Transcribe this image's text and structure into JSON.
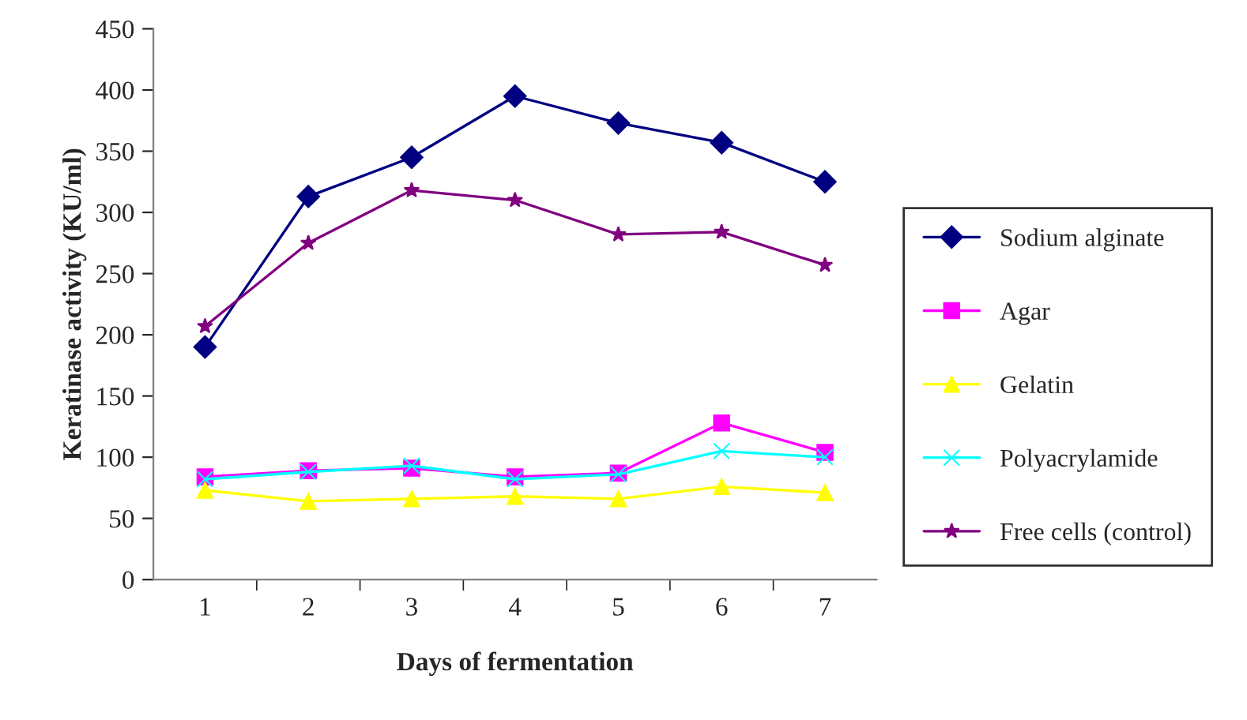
{
  "chart_data": {
    "type": "line",
    "xlabel": "Days of fermentation",
    "ylabel": "Keratinase activity (KU/ml)",
    "categories": [
      "1",
      "2",
      "3",
      "4",
      "5",
      "6",
      "7"
    ],
    "ylim": [
      0,
      450
    ],
    "yticks": [
      0,
      50,
      100,
      150,
      200,
      250,
      300,
      350,
      400,
      450
    ],
    "grid": false,
    "legend": "right",
    "series": [
      {
        "name": "Sodium alginate",
        "color": "#000080",
        "marker": "diamond",
        "values": [
          190,
          313,
          345,
          395,
          373,
          357,
          325
        ]
      },
      {
        "name": "Agar",
        "color": "#ff00ff",
        "marker": "square",
        "values": [
          84,
          89,
          91,
          84,
          87,
          128,
          104
        ]
      },
      {
        "name": "Gelatin",
        "color": "#ffff00",
        "marker": "triangle",
        "values": [
          73,
          64,
          66,
          68,
          66,
          76,
          71
        ]
      },
      {
        "name": "Polyacrylamide",
        "color": "#00ffff",
        "marker": "cross",
        "values": [
          82,
          88,
          93,
          82,
          86,
          105,
          100
        ]
      },
      {
        "name": "Free cells (control)",
        "color": "#800080",
        "marker": "star",
        "values": [
          207,
          275,
          318,
          310,
          282,
          284,
          257
        ]
      }
    ]
  }
}
